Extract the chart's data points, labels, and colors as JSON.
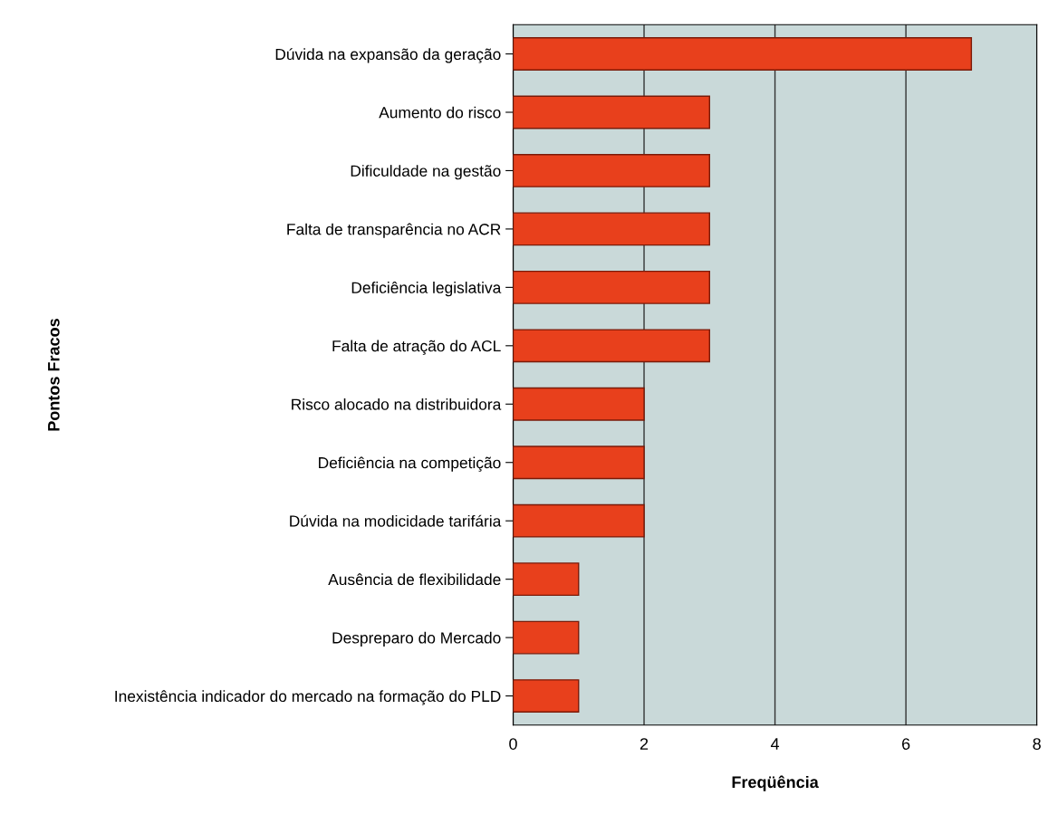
{
  "chart_data": {
    "type": "bar",
    "orientation": "horizontal",
    "xlabel": "Freqüência",
    "ylabel": "Pontos Fracos",
    "categories": [
      "Dúvida na expansão da geração",
      "Aumento do risco",
      "Dificuldade na gestão",
      "Falta de transparência no ACR",
      "Deficiência legislativa",
      "Falta de atração do ACL",
      "Risco alocado na distribuidora",
      "Deficiência na competição",
      "Dúvida na modicidade tarifária",
      "Ausência de flexibilidade",
      "Despreparo do Mercado",
      "Inexistência indicador do mercado na formação do PLD"
    ],
    "values": [
      7,
      3,
      3,
      3,
      3,
      3,
      2,
      2,
      2,
      1,
      1,
      1
    ],
    "color": "#e8401c",
    "xlim": [
      0,
      8
    ],
    "xticks": [
      0,
      2,
      4,
      6,
      8
    ],
    "grid": "x"
  }
}
